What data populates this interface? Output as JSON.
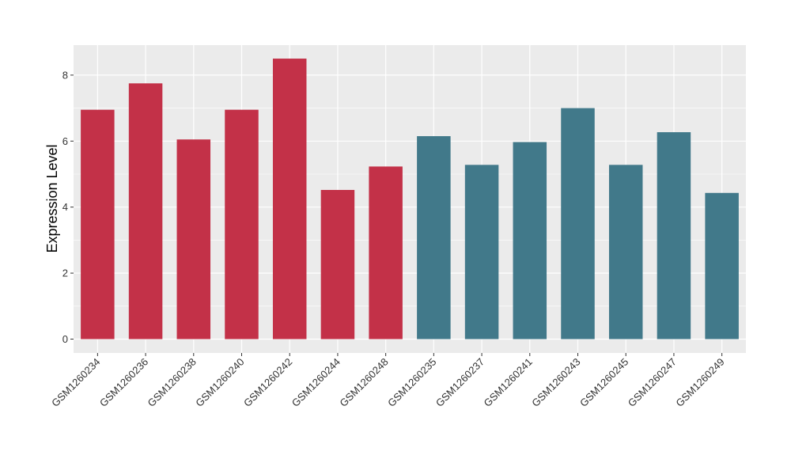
{
  "chart_data": {
    "type": "bar",
    "title": "",
    "xlabel": "",
    "ylabel": "Expression Level",
    "ylim": [
      0,
      8.9
    ],
    "yticks": [
      0,
      2,
      4,
      6,
      8
    ],
    "grid": true,
    "legend": "none",
    "colors": {
      "group_a": "#c33148",
      "group_b": "#41798a",
      "panel": "#ebebeb",
      "grid": "#ffffff"
    },
    "categories": [
      "GSM1260234",
      "GSM1260236",
      "GSM1260238",
      "GSM1260240",
      "GSM1260242",
      "GSM1260244",
      "GSM1260248",
      "GSM1260235",
      "GSM1260237",
      "GSM1260241",
      "GSM1260243",
      "GSM1260245",
      "GSM1260247",
      "GSM1260249"
    ],
    "values": [
      6.95,
      7.75,
      6.05,
      6.95,
      8.5,
      4.52,
      5.23,
      6.15,
      5.28,
      5.97,
      7.0,
      5.28,
      6.27,
      4.43
    ],
    "groups": [
      "a",
      "a",
      "a",
      "a",
      "a",
      "a",
      "a",
      "b",
      "b",
      "b",
      "b",
      "b",
      "b",
      "b"
    ]
  }
}
